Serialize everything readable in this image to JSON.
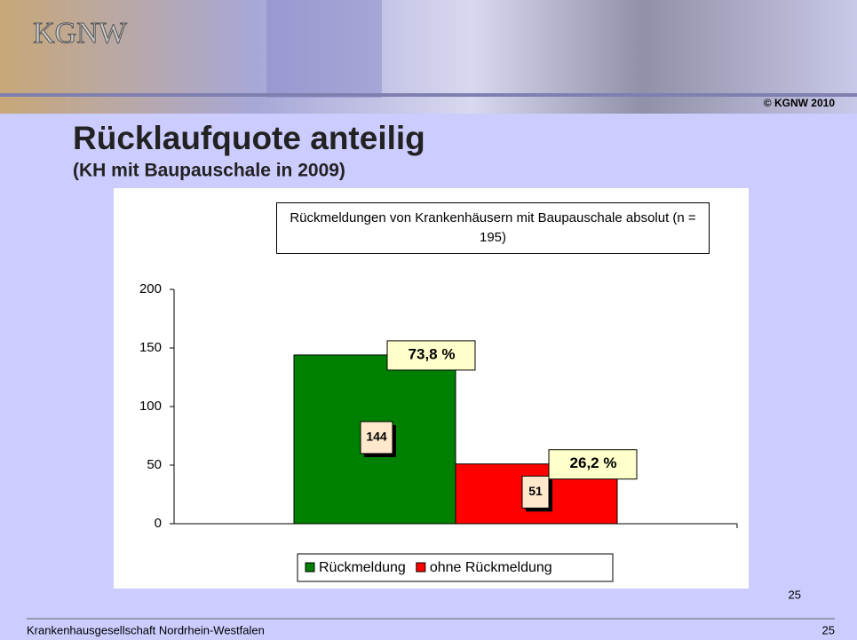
{
  "header": {
    "logo": "KGNW",
    "copyright": "© KGNW 2010"
  },
  "slide": {
    "title": "Rücklaufquote anteilig",
    "subtitle": "(KH mit Baupauschale in 2009)",
    "page_number": "25"
  },
  "footer": {
    "organization": "Krankenhausgesellschaft Nordrhein-Westfalen",
    "page_number": "25"
  },
  "chart_data": {
    "type": "bar",
    "title": "Rückmeldungen von Krankenhäusern mit Baupauschale absolut (n = 195)",
    "categories": [
      null
    ],
    "series": [
      {
        "name": "Rückmeldung",
        "color": "#008000",
        "values": [
          144
        ],
        "annotation": "73,8 %"
      },
      {
        "name": "ohne Rückmeldung",
        "color": "#ff0000",
        "values": [
          51
        ],
        "annotation": "26,2 %"
      }
    ],
    "ylim": [
      0,
      200
    ],
    "yticks": [
      0,
      50,
      100,
      150,
      200
    ],
    "legend": "bottom"
  }
}
